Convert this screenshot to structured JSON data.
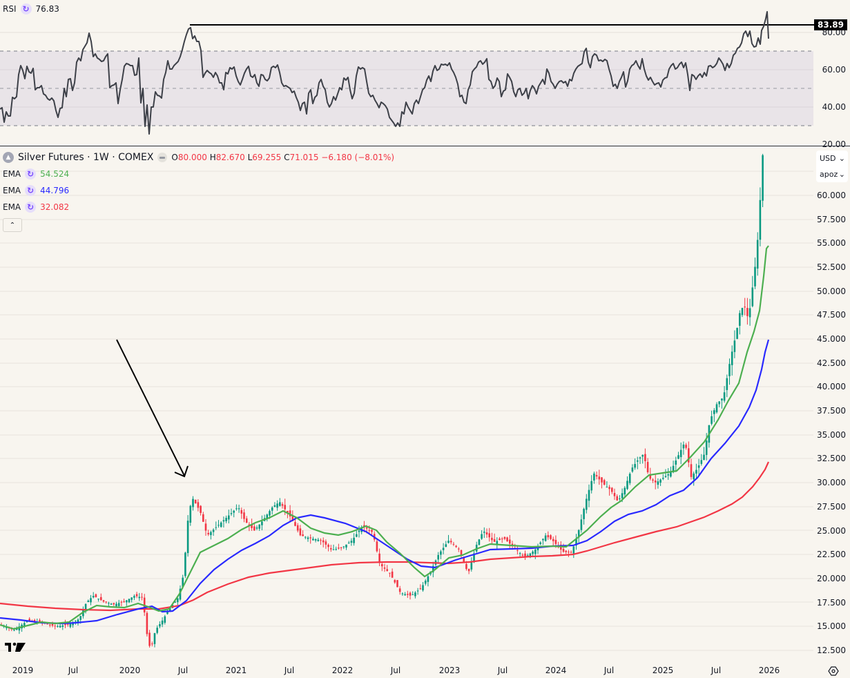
{
  "rsi": {
    "label": "RSI",
    "value": "76.83",
    "value_color": "#131722",
    "highlight_value": "83.89",
    "axis_ticks": [
      "80.00",
      "60.00",
      "40.00",
      "20.00"
    ],
    "overbought": 70,
    "oversold": 30,
    "line_color": "#3d4048",
    "band_fill": "#e9e4e8"
  },
  "symbol": {
    "name": "Silver Futures · 1W · COMEX",
    "o_label": "O",
    "o_value": "80.000",
    "h_label": "H",
    "h_value": "82.670",
    "l_label": "L",
    "l_value": "69.255",
    "c_label": "C",
    "c_value": "71.015",
    "change": "−6.180 (−8.01%)",
    "value_color": "#f23645"
  },
  "indicators": [
    {
      "label": "EMA",
      "value": "54.524",
      "color": "#4caf50"
    },
    {
      "label": "EMA",
      "value": "44.796",
      "color": "#2929ff"
    },
    {
      "label": "EMA",
      "value": "32.082",
      "color": "#f23645"
    }
  ],
  "price_axis": {
    "currency": "USD",
    "unit": "apoz",
    "ticks": [
      "60.000",
      "57.500",
      "55.000",
      "52.500",
      "50.000",
      "47.500",
      "45.000",
      "42.500",
      "40.000",
      "37.500",
      "35.000",
      "32.500",
      "30.000",
      "27.500",
      "25.000",
      "22.500",
      "20.000",
      "17.500",
      "15.000",
      "12.500"
    ]
  },
  "time_axis": {
    "labels": [
      "2019",
      "Jul",
      "2020",
      "Jul",
      "2021",
      "Jul",
      "2022",
      "Jul",
      "2023",
      "Jul",
      "2024",
      "Jul",
      "2025",
      "Jul",
      "2026"
    ]
  },
  "colors": {
    "up": "#089981",
    "down": "#f23645",
    "background": "#f8f5ef",
    "grid": "#e8e4dc"
  },
  "chart_data": [
    {
      "type": "line",
      "title": "RSI",
      "ylabel": "RSI",
      "ylim": [
        20,
        90
      ],
      "x": [
        "2019-01",
        "2019-04",
        "2019-07",
        "2019-09",
        "2019-12",
        "2020-03",
        "2020-05",
        "2020-08",
        "2020-11",
        "2021-02",
        "2021-05",
        "2021-08",
        "2021-11",
        "2022-02",
        "2022-05",
        "2022-08",
        "2022-11",
        "2023-02",
        "2023-05",
        "2023-08",
        "2023-11",
        "2024-02",
        "2024-05",
        "2024-08",
        "2024-11",
        "2025-02",
        "2025-04",
        "2025-07",
        "2025-09",
        "2025-11",
        "2025-12"
      ],
      "series": [
        {
          "name": "RSI",
          "values": [
            40,
            62,
            52,
            78,
            63,
            28,
            55,
            83,
            57,
            63,
            59,
            63,
            42,
            57,
            54,
            30,
            50,
            64,
            41,
            62,
            52,
            47,
            72,
            58,
            62,
            55,
            43,
            62,
            80,
            77,
            76.83
          ]
        }
      ],
      "annotations": [
        {
          "type": "horizontal_line",
          "value": 83.89
        }
      ],
      "bands": [
        30,
        50,
        70
      ],
      "grid": true
    },
    {
      "type": "candlestick",
      "title": "Silver Futures · 1W · COMEX",
      "ylabel": "USD",
      "ylim": [
        11.5,
        73
      ],
      "x": [
        "2019-01",
        "2019-04",
        "2019-07",
        "2019-09",
        "2019-12",
        "2020-03",
        "2020-05",
        "2020-08",
        "2020-11",
        "2021-02",
        "2021-05",
        "2021-08",
        "2021-11",
        "2022-02",
        "2022-05",
        "2022-08",
        "2022-11",
        "2023-02",
        "2023-05",
        "2023-08",
        "2023-11",
        "2024-02",
        "2024-05",
        "2024-08",
        "2024-11",
        "2025-02",
        "2025-04",
        "2025-07",
        "2025-09",
        "2025-11",
        "2025-12"
      ],
      "series": [
        {
          "name": "Close",
          "values": [
            15.5,
            15.0,
            15.8,
            17.5,
            17.8,
            14.0,
            17.5,
            27.5,
            23.8,
            27.0,
            26.0,
            23.5,
            23.0,
            25.0,
            21.5,
            18.5,
            21.5,
            23.5,
            24.0,
            23.0,
            23.5,
            22.5,
            30.0,
            29.5,
            31.0,
            32.0,
            33.5,
            38.0,
            46.0,
            50.0,
            71.015
          ]
        },
        {
          "name": "EMA (54.524)",
          "values": [
            15.0,
            15.3,
            15.5,
            16.6,
            17.2,
            16.0,
            17.5,
            23.0,
            24.2,
            26.0,
            26.5,
            24.5,
            23.8,
            24.2,
            23.5,
            20.0,
            20.0,
            22.5,
            23.5,
            23.2,
            23.5,
            22.8,
            27.0,
            29.0,
            30.0,
            31.5,
            32.5,
            35.5,
            41.0,
            46.0,
            54.524
          ]
        },
        {
          "name": "EMA (44.796)",
          "values": [
            15.8,
            15.6,
            15.5,
            16.2,
            16.8,
            16.8,
            17.0,
            20.5,
            22.5,
            24.0,
            25.0,
            24.8,
            24.2,
            24.2,
            23.0,
            21.5,
            21.0,
            22.0,
            22.8,
            23.0,
            23.2,
            23.0,
            24.5,
            26.5,
            28.0,
            29.0,
            30.5,
            32.5,
            36.0,
            40.0,
            44.796
          ]
        },
        {
          "name": "EMA (32.082)",
          "values": [
            17.5,
            17.2,
            17.0,
            16.8,
            16.8,
            17.0,
            17.0,
            18.0,
            19.5,
            20.5,
            21.0,
            21.5,
            21.8,
            22.0,
            22.0,
            21.5,
            21.3,
            21.5,
            21.8,
            22.0,
            22.3,
            22.5,
            23.5,
            24.5,
            25.5,
            26.0,
            27.0,
            28.0,
            29.5,
            30.5,
            32.082
          ]
        }
      ],
      "annotations": [
        {
          "type": "arrow",
          "from": "2019-12 ~ 43.5",
          "to": "2020-08 ~ 30.5"
        }
      ],
      "grid": true
    }
  ]
}
